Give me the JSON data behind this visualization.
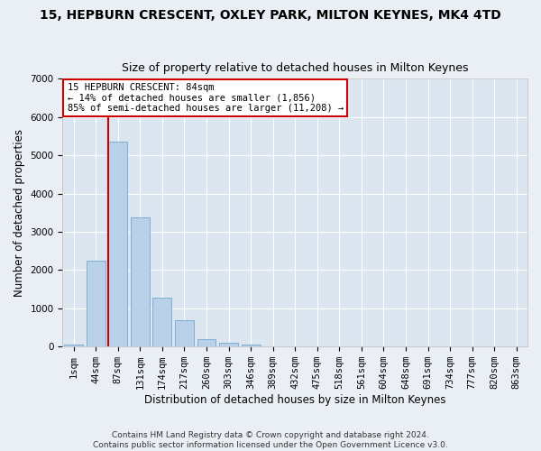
{
  "title": "15, HEPBURN CRESCENT, OXLEY PARK, MILTON KEYNES, MK4 4TD",
  "subtitle": "Size of property relative to detached houses in Milton Keynes",
  "xlabel": "Distribution of detached houses by size in Milton Keynes",
  "ylabel": "Number of detached properties",
  "footer1": "Contains HM Land Registry data © Crown copyright and database right 2024.",
  "footer2": "Contains public sector information licensed under the Open Government Licence v3.0.",
  "bar_labels": [
    "1sqm",
    "44sqm",
    "87sqm",
    "131sqm",
    "174sqm",
    "217sqm",
    "260sqm",
    "303sqm",
    "346sqm",
    "389sqm",
    "432sqm",
    "475sqm",
    "518sqm",
    "561sqm",
    "604sqm",
    "648sqm",
    "691sqm",
    "734sqm",
    "777sqm",
    "820sqm",
    "863sqm"
  ],
  "bar_values": [
    60,
    2250,
    5350,
    3380,
    1280,
    700,
    200,
    110,
    50,
    8,
    5,
    2,
    1,
    0,
    0,
    0,
    0,
    0,
    0,
    0,
    0
  ],
  "bar_color": "#b8d0e8",
  "bar_edge_color": "#6fa8d0",
  "red_line_x": 1.575,
  "annotation_text": "15 HEPBURN CRESCENT: 84sqm\n← 14% of detached houses are smaller (1,856)\n85% of semi-detached houses are larger (11,208) →",
  "annotation_box_color": "#ffffff",
  "annotation_edge_color": "#cc0000",
  "red_line_color": "#cc0000",
  "ylim": [
    0,
    7000
  ],
  "yticks": [
    0,
    1000,
    2000,
    3000,
    4000,
    5000,
    6000,
    7000
  ],
  "title_fontsize": 10,
  "subtitle_fontsize": 9,
  "axis_label_fontsize": 8.5,
  "tick_fontsize": 7.5,
  "footer_fontsize": 6.5,
  "annotation_fontsize": 7.5,
  "bg_color": "#eaeff5",
  "plot_bg_color": "#dce6f0",
  "grid_color": "#ffffff"
}
